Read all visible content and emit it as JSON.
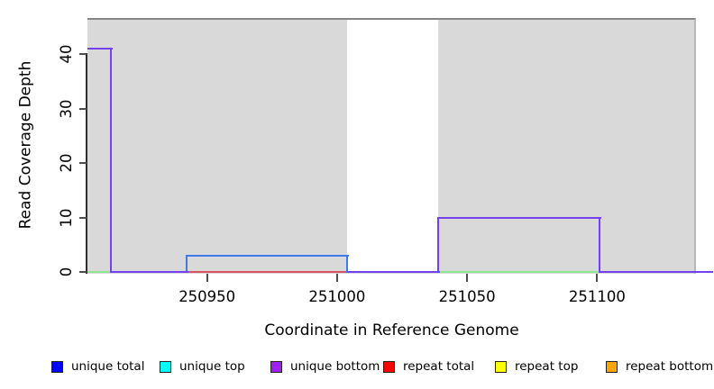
{
  "axes": {
    "x": {
      "title": "Coordinate in Reference Genome",
      "tick_labels": [
        "250950",
        "251000",
        "251050",
        "251100"
      ]
    },
    "y": {
      "title": "Read Coverage Depth",
      "tick_labels": [
        "0",
        "10",
        "20",
        "30",
        "40"
      ]
    }
  },
  "chart_data": {
    "type": "line",
    "subtype": "step-coverage",
    "title": "",
    "xlabel": "Coordinate in Reference Genome",
    "ylabel": "Read Coverage Depth",
    "xlim": [
      250904,
      251144
    ],
    "ylim": [
      0,
      46.8
    ],
    "x_ticks": [
      250950,
      251000,
      251050,
      251100
    ],
    "y_ticks": [
      0,
      10,
      20,
      30,
      40
    ],
    "grid": "off",
    "plot_background": "#d9d9d9",
    "unique_region_gray_extent": [
      250904,
      251138
    ],
    "repeat_region_white_band": [
      251004,
      251039
    ],
    "series": [
      {
        "name": "top-strand baseline (cyan+yellow overlap)",
        "color": "#8fe78f",
        "points": [
          [
            250904,
            0
          ],
          [
            250913,
            0
          ]
        ]
      },
      {
        "name": "top-strand baseline (cyan+yellow overlap)",
        "color": "#8fe78f",
        "points": [
          [
            251039,
            0
          ],
          [
            251101,
            0
          ]
        ]
      },
      {
        "name": "repeat total",
        "color": "#dc5063",
        "points": [
          [
            250942,
            0
          ],
          [
            251004,
            0
          ]
        ]
      },
      {
        "name": "unique total",
        "color": "#3f78e8",
        "points": [
          [
            250942,
            0
          ],
          [
            250942,
            3
          ],
          [
            251004,
            3
          ],
          [
            251004,
            0
          ]
        ]
      },
      {
        "name": "unique coverage (blue+purple overlap)",
        "color": "#7540ee",
        "points": [
          [
            250904,
            41
          ],
          [
            250913,
            41
          ],
          [
            250913,
            0
          ],
          [
            250942,
            0
          ]
        ]
      },
      {
        "name": "unique coverage (blue+purple overlap)",
        "color": "#7540ee",
        "points": [
          [
            251004,
            0
          ],
          [
            251039,
            0
          ],
          [
            251039,
            10
          ],
          [
            251101,
            10
          ],
          [
            251101,
            0
          ],
          [
            251144,
            0
          ]
        ]
      }
    ],
    "legend_position": "bottom",
    "legend": [
      {
        "label": "unique total",
        "color": "#0000ff"
      },
      {
        "label": "unique top",
        "color": "#00ffff"
      },
      {
        "label": "unique bottom",
        "color": "#a020f0"
      },
      {
        "label": "repeat total",
        "color": "#ff0000"
      },
      {
        "label": "repeat top",
        "color": "#ffff00"
      },
      {
        "label": "repeat bottom",
        "color": "#ffa500"
      }
    ]
  }
}
